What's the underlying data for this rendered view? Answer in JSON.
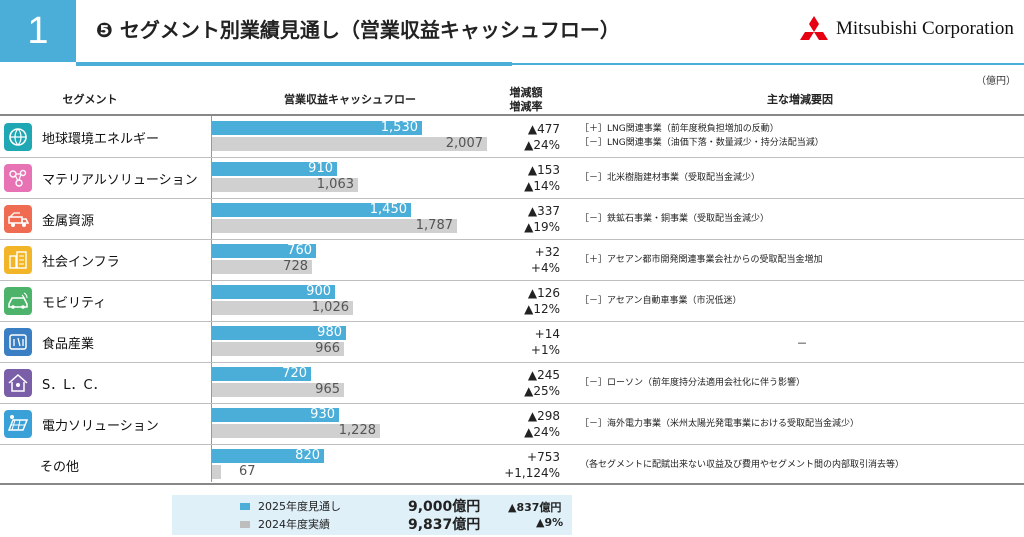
{
  "header": {
    "section_number": "1",
    "title": "❺ セグメント別業績見通し（営業収益キャッシュフロー）",
    "logo_text": "Mitsubishi Corporation",
    "unit": "（億円）"
  },
  "colors": {
    "accent": "#4aaed9",
    "forecast_bar": "#4aaed9",
    "actual_bar": "#d0d0d0"
  },
  "columns": {
    "segment": "セグメント",
    "cashflow": "営業収益キャッシュフロー",
    "change_line1": "増減額",
    "change_line2": "増減率",
    "factors": "主な増減要因"
  },
  "rows": [
    {
      "icon": "globe-energy-icon",
      "icon_color": "#1fa8b4",
      "name": "地球環境エネルギー",
      "forecast_label": "1,530",
      "actual_label": "2,007",
      "change": "▲477",
      "rate": "▲24%",
      "factor1": "［＋］LNG関連事業（前年度税負担増加の反動）",
      "factor2": "［－］LNG関連事業（油価下落・数量減少・持分法配当減）"
    },
    {
      "icon": "molecule-icon",
      "icon_color": "#e772b4",
      "name": "マテリアルソリューション",
      "forecast_label": "910",
      "actual_label": "1,063",
      "change": "▲153",
      "rate": "▲14%",
      "factor1": "［－］北米樹脂建材事業（受取配当金減少）",
      "factor2": ""
    },
    {
      "icon": "mining-truck-icon",
      "icon_color": "#ef6b52",
      "name": "金属資源",
      "forecast_label": "1,450",
      "actual_label": "1,787",
      "change": "▲337",
      "rate": "▲19%",
      "factor1": "［－］鉄鉱石事業・銅事業（受取配当金減少）",
      "factor2": ""
    },
    {
      "icon": "city-icon",
      "icon_color": "#f2b527",
      "name": "社会インフラ",
      "forecast_label": "760",
      "actual_label": "728",
      "change": "+32",
      "rate": "+4%",
      "factor1": "［＋］アセアン都市開発関連事業会社からの受取配当金増加",
      "factor2": ""
    },
    {
      "icon": "car-icon",
      "icon_color": "#4db36b",
      "name": "モビリティ",
      "forecast_label": "900",
      "actual_label": "1,026",
      "change": "▲126",
      "rate": "▲12%",
      "factor1": "［－］アセアン自動車事業（市況低迷）",
      "factor2": ""
    },
    {
      "icon": "food-icon",
      "icon_color": "#3a7fc4",
      "name": "食品産業",
      "forecast_label": "980",
      "actual_label": "966",
      "change": "+14",
      "rate": "+1%",
      "factor1": "－",
      "factor2": ""
    },
    {
      "icon": "house-people-icon",
      "icon_color": "#7a5fa8",
      "name": "S．L．C．",
      "forecast_label": "720",
      "actual_label": "965",
      "change": "▲245",
      "rate": "▲25%",
      "factor1": "［－］ローソン（前年度持分法適用会社化に伴う影響）",
      "factor2": ""
    },
    {
      "icon": "solar-panel-icon",
      "icon_color": "#3aa0d8",
      "name": "電力ソリューション",
      "forecast_label": "930",
      "actual_label": "1,228",
      "change": "▲298",
      "rate": "▲24%",
      "factor1": "［－］海外電力事業（米州太陽光発電事業における受取配当金減少）",
      "factor2": ""
    },
    {
      "icon": "",
      "icon_color": "",
      "name": "その他",
      "forecast_label": "820",
      "actual_label": "67",
      "change": "+753",
      "rate": "+1,124%",
      "factor1": "（各セグメントに配賦出来ない収益及び費用やセグメント間の内部取引消去等）",
      "factor2": ""
    }
  ],
  "chart_data": {
    "type": "bar",
    "categories": [
      "地球環境エネルギー",
      "マテリアルソリューション",
      "金属資源",
      "社会インフラ",
      "モビリティ",
      "食品産業",
      "S．L．C．",
      "電力ソリューション",
      "その他"
    ],
    "series": [
      {
        "name": "2025年度見通し",
        "values": [
          1530,
          910,
          1450,
          760,
          900,
          980,
          720,
          930,
          820
        ]
      },
      {
        "name": "2024年度実績",
        "values": [
          2007,
          1063,
          1787,
          728,
          1026,
          966,
          965,
          1228,
          67
        ]
      }
    ],
    "xlim": [
      0,
      2007
    ],
    "title": "",
    "xlabel": "",
    "ylabel": ""
  },
  "legend": {
    "forecast_label": "2025年度見通し",
    "actual_label": "2024年度実績",
    "forecast_total": "9,000億円",
    "actual_total": "9,837億円",
    "change": "▲837億円",
    "rate": "▲9%"
  }
}
